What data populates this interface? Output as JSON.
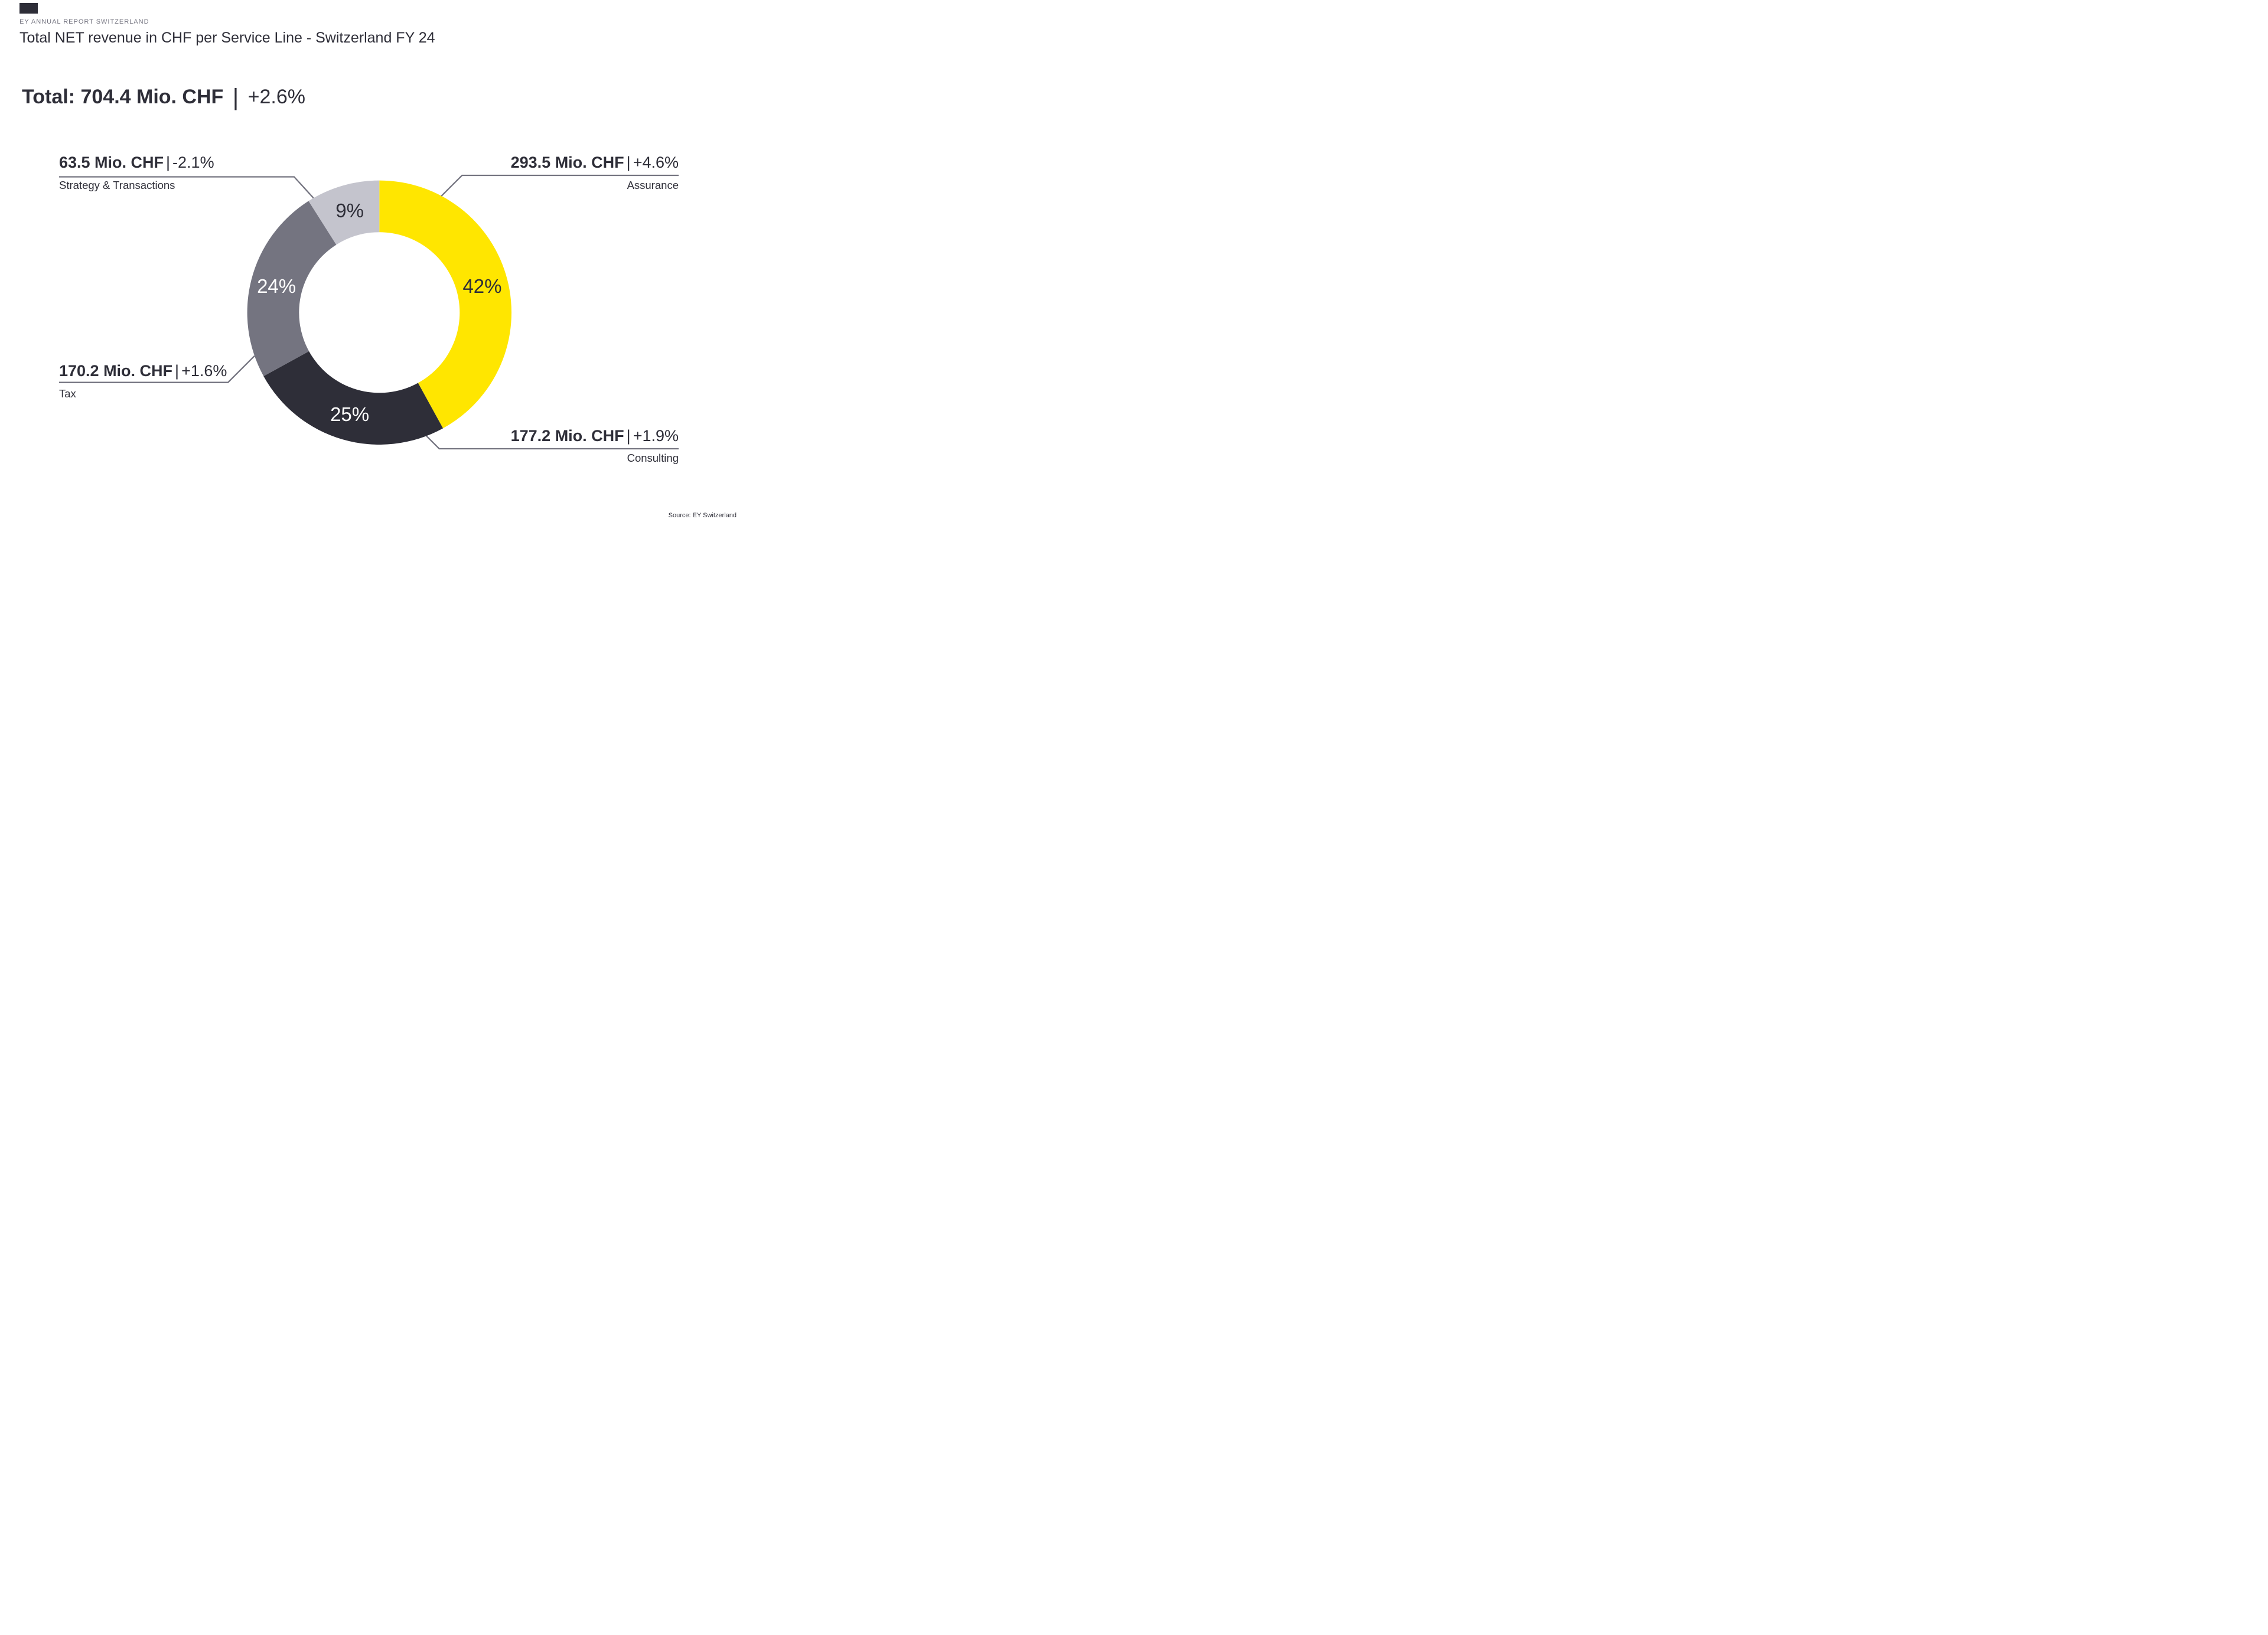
{
  "page": {
    "eyebrow": "EY ANNUAL REPORT SWITZERLAND",
    "title": "Total NET revenue in CHF per Service Line - Switzerland FY 24",
    "source": "Source: EY Switzerland"
  },
  "total": {
    "label": "Total:",
    "amount": "704.4 Mio. CHF",
    "separator": "|",
    "change": "+2.6%"
  },
  "labels": {
    "separator": "|"
  },
  "colors": {
    "yellow": "#FFE600",
    "dark": "#2E2E38",
    "gray": "#747480",
    "light_gray": "#C4C4CD",
    "text": "#2E2E38",
    "leader_line": "#747480",
    "background": "#FFFFFF"
  },
  "chart_data": {
    "type": "pie",
    "donut": true,
    "title": "Total NET revenue in CHF per Service Line - Switzerland FY 24",
    "total": {
      "value_mio_chf": 704.4,
      "change_pct": 2.6,
      "label": "Total: 704.4 Mio. CHF | +2.6%"
    },
    "start_angle_deg": 0,
    "direction": "clockwise",
    "legend_position": "callout-labels",
    "segments": [
      {
        "name": "Assurance",
        "value_mio_chf": 293.5,
        "change_pct": 4.6,
        "share_pct": 42,
        "amount_label": "293.5 Mio. CHF",
        "change_label": "+4.6%",
        "pct_label": "42%",
        "color": "#FFE600",
        "pct_label_color": "#2E2E38",
        "callout_side": "top-right"
      },
      {
        "name": "Consulting",
        "value_mio_chf": 177.2,
        "change_pct": 1.9,
        "share_pct": 25,
        "amount_label": "177.2 Mio. CHF",
        "change_label": "+1.9%",
        "pct_label": "25%",
        "color": "#2E2E38",
        "pct_label_color": "#FFFFFF",
        "callout_side": "bottom-right"
      },
      {
        "name": "Tax",
        "value_mio_chf": 170.2,
        "change_pct": 1.6,
        "share_pct": 24,
        "amount_label": "170.2 Mio. CHF",
        "change_label": "+1.6%",
        "pct_label": "24%",
        "color": "#747480",
        "pct_label_color": "#FFFFFF",
        "callout_side": "bottom-left"
      },
      {
        "name": "Strategy & Transactions",
        "value_mio_chf": 63.5,
        "change_pct": -2.1,
        "share_pct": 9,
        "amount_label": "63.5 Mio. CHF",
        "change_label": "-2.1%",
        "pct_label": "9%",
        "color": "#C4C4CD",
        "pct_label_color": "#2E2E38",
        "callout_side": "top-left"
      }
    ]
  }
}
